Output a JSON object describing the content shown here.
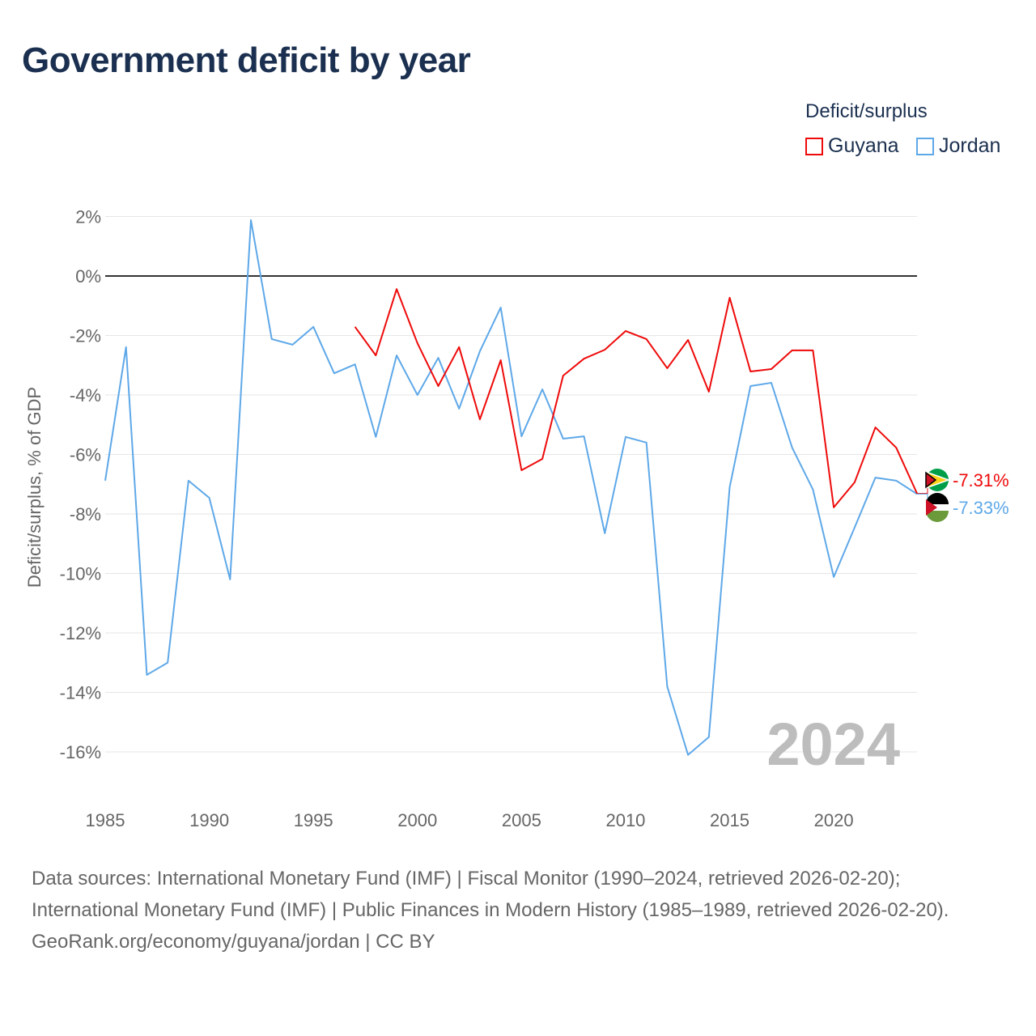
{
  "title": "Government deficit by year",
  "legend": {
    "title": "Deficit/surplus",
    "items": [
      {
        "name": "Guyana",
        "color": "#ee0a0a"
      },
      {
        "name": "Jordan",
        "color": "#5ea8e8"
      }
    ]
  },
  "footer": {
    "sources": "Data sources: International Monetary Fund (IMF) | Fiscal Monitor (1990–2024, retrieved 2026-02-20); International Monetary Fund (IMF) | Public Finances in Modern History (1985–1989, retrieved 2026-02-20).",
    "credit": "GeoRank.org/economy/guyana/jordan | CC BY"
  },
  "chart_data": {
    "type": "line",
    "title": "Government deficit by year",
    "ylabel": "Deficit/surplus, % of GDP",
    "xlabel": "",
    "year_watermark": "2024",
    "xlim": [
      1985,
      2024
    ],
    "ylim": [
      -17,
      2.5
    ],
    "x_ticks": [
      1985,
      1990,
      1995,
      2000,
      2005,
      2010,
      2015,
      2020
    ],
    "y_ticks": [
      2,
      0,
      -2,
      -4,
      -6,
      -8,
      -10,
      -12,
      -14,
      -16
    ],
    "y_tick_labels": [
      "2%",
      "0%",
      "-2%",
      "-4%",
      "-6%",
      "-8%",
      "-10%",
      "-12%",
      "-14%",
      "-16%"
    ],
    "grid": true,
    "legend_position": "top-right",
    "series": [
      {
        "name": "Guyana",
        "color": "#ee0a0a",
        "end_label": "-7.31%",
        "x": [
          1997,
          1998,
          1999,
          2000,
          2001,
          2002,
          2003,
          2004,
          2005,
          2006,
          2007,
          2008,
          2009,
          2010,
          2011,
          2012,
          2013,
          2014,
          2015,
          2016,
          2017,
          2018,
          2019,
          2020,
          2021,
          2022,
          2023,
          2024
        ],
        "values": [
          -1.71,
          -2.67,
          -0.44,
          -2.26,
          -3.7,
          -2.39,
          -4.82,
          -2.83,
          -6.53,
          -6.15,
          -3.35,
          -2.78,
          -2.48,
          -1.85,
          -2.12,
          -3.1,
          -2.15,
          -3.89,
          -0.73,
          -3.21,
          -3.13,
          -2.5,
          -2.5,
          -7.78,
          -6.94,
          -5.09,
          -5.77,
          -7.31
        ]
      },
      {
        "name": "Jordan",
        "color": "#5ea8e8",
        "end_label": "-7.33%",
        "x": [
          1985,
          1986,
          1987,
          1988,
          1989,
          1990,
          1991,
          1992,
          1993,
          1994,
          1995,
          1996,
          1997,
          1998,
          1999,
          2000,
          2001,
          2002,
          2003,
          2004,
          2005,
          2006,
          2007,
          2008,
          2009,
          2010,
          2011,
          2012,
          2013,
          2014,
          2015,
          2016,
          2017,
          2018,
          2019,
          2020,
          2021,
          2022,
          2023,
          2024
        ],
        "values": [
          -6.88,
          -2.39,
          -13.41,
          -13.0,
          -6.88,
          -7.46,
          -10.2,
          1.88,
          -2.12,
          -2.31,
          -1.71,
          -3.27,
          -2.97,
          -5.41,
          -2.67,
          -4.0,
          -2.75,
          -4.46,
          -2.53,
          -1.06,
          -5.39,
          -3.81,
          -5.47,
          -5.39,
          -8.65,
          -5.41,
          -5.6,
          -13.8,
          -16.1,
          -15.5,
          -7.1,
          -3.7,
          -3.59,
          -5.77,
          -7.18,
          -10.12,
          -8.46,
          -6.78,
          -6.88,
          -7.33
        ]
      }
    ]
  }
}
